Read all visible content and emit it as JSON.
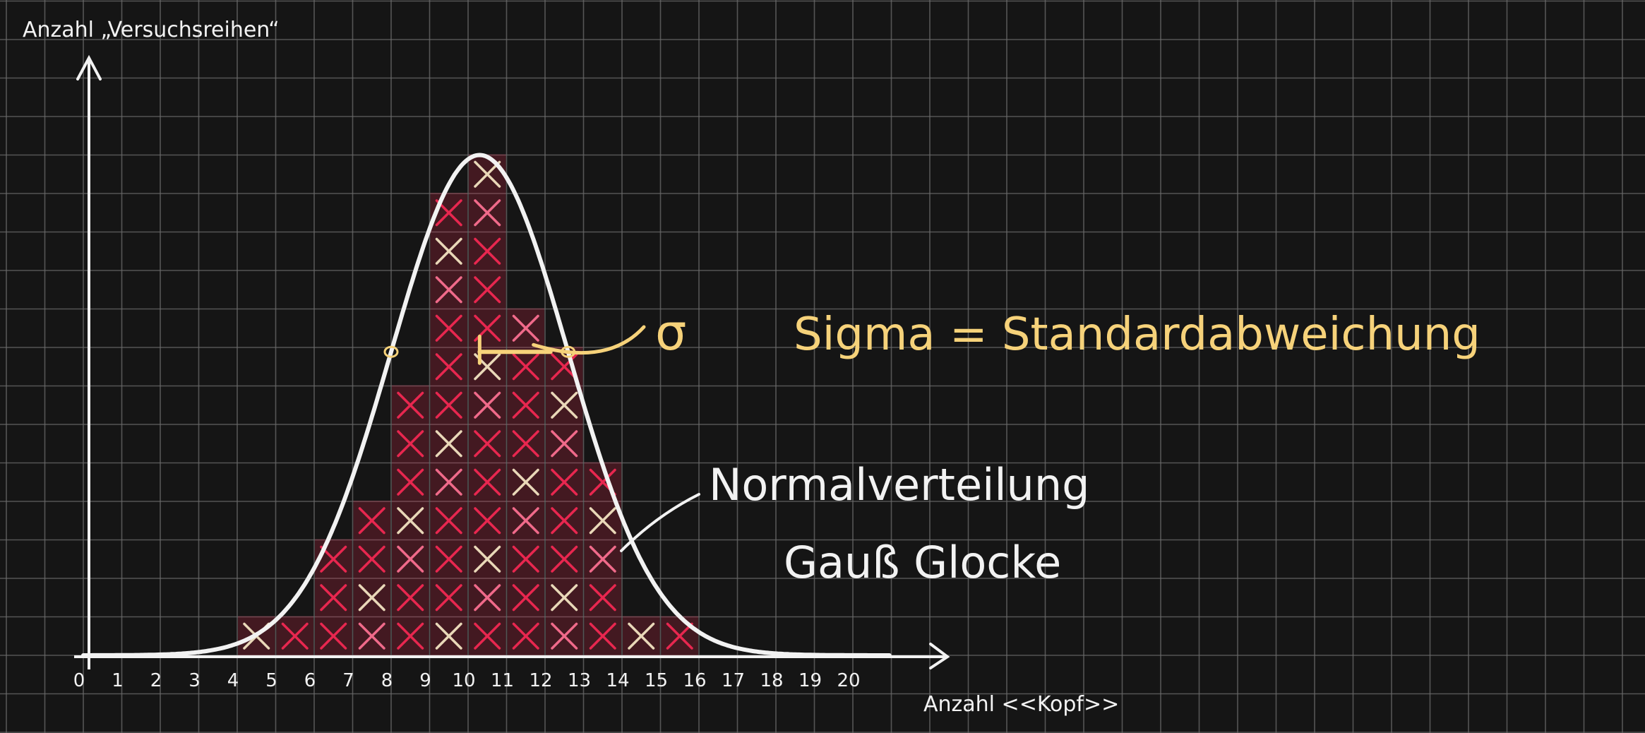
{
  "colors": {
    "board": "#151515",
    "grid": "#6b6b6b",
    "chalk_white": "#f2f2f2",
    "chalk_yellow": "#f6d27a",
    "chalk_red": "#e8274f",
    "chalk_pink": "#f06a8a",
    "chalk_beige": "#e9d8b8",
    "chalk_green": "#9be0b0"
  },
  "chart_data": {
    "type": "bar",
    "title": "",
    "xlabel": "Anzahl <<Kopf>>",
    "ylabel": "Anzahl „Versuchsreihen“",
    "x": [
      0,
      1,
      2,
      3,
      4,
      5,
      6,
      7,
      8,
      9,
      10,
      11,
      12,
      13,
      14,
      15,
      16,
      17,
      18,
      19,
      20
    ],
    "tick_labels": [
      "0",
      "1",
      "2",
      "3",
      "4",
      "5",
      "6",
      "7",
      "8",
      "9",
      "10",
      "11",
      "12",
      "13",
      "14",
      "15",
      "16",
      "17",
      "18",
      "19",
      "20"
    ],
    "values": [
      0,
      0,
      0,
      0,
      1,
      1,
      3,
      4,
      7,
      12,
      13,
      9,
      8,
      5,
      1,
      1,
      0,
      0,
      0,
      0,
      0
    ],
    "xlim": [
      0,
      21
    ],
    "ylim": [
      0,
      17
    ],
    "grid": true,
    "curve": {
      "label_line1": "Normalverteilung",
      "label_line2": "Gauß Glocke",
      "mean": 10.3,
      "sigma": 2.3,
      "peak": 13
    },
    "annotation": {
      "symbol": "σ",
      "text": "Sigma  = Standardabweichung",
      "sigma_from": 10.3,
      "sigma_to": 12.6
    }
  }
}
